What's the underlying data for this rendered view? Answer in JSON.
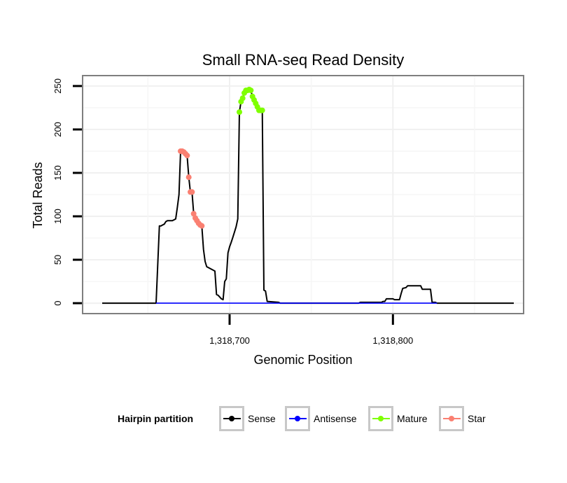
{
  "chart_data": {
    "type": "line",
    "title": "Small RNA-seq Read Density",
    "xlabel": "Genomic Position",
    "ylabel": "Total Reads",
    "xlim": [
      1318610,
      1318880
    ],
    "ylim": [
      -12,
      262
    ],
    "x_ticks": [
      {
        "value": 1318700,
        "label": "1,318,700"
      },
      {
        "value": 1318800,
        "label": "1,318,800"
      }
    ],
    "y_ticks": [
      {
        "value": 0,
        "label": "0"
      },
      {
        "value": 50,
        "label": "50"
      },
      {
        "value": 100,
        "label": "100"
      },
      {
        "value": 150,
        "label": "150"
      },
      {
        "value": 200,
        "label": "200"
      },
      {
        "value": 250,
        "label": "250"
      }
    ],
    "grid": true,
    "legend": {
      "title": "Hairpin partition",
      "position": "bottom",
      "entries": [
        {
          "name": "Sense",
          "color": "#000000"
        },
        {
          "name": "Antisense",
          "color": "#0000ff"
        },
        {
          "name": "Mature",
          "color": "#7fff00"
        },
        {
          "name": "Star",
          "color": "#fa8072"
        }
      ]
    },
    "series": [
      {
        "name": "Sense",
        "color": "#000000",
        "style": "line",
        "points": [
          [
            1318622,
            0
          ],
          [
            1318655,
            0
          ],
          [
            1318657,
            89
          ],
          [
            1318658,
            89
          ],
          [
            1318659,
            90
          ],
          [
            1318660,
            91
          ],
          [
            1318661,
            94
          ],
          [
            1318662,
            95
          ],
          [
            1318663,
            95
          ],
          [
            1318665,
            95
          ],
          [
            1318666,
            96
          ],
          [
            1318667,
            97
          ],
          [
            1318668,
            110
          ],
          [
            1318669,
            125
          ],
          [
            1318670,
            175
          ],
          [
            1318671,
            175
          ],
          [
            1318672,
            174
          ],
          [
            1318673,
            172
          ],
          [
            1318674,
            170
          ],
          [
            1318675,
            145
          ],
          [
            1318676,
            128
          ],
          [
            1318677,
            128
          ],
          [
            1318678,
            103
          ],
          [
            1318679,
            98
          ],
          [
            1318680,
            95
          ],
          [
            1318681,
            92
          ],
          [
            1318682,
            90
          ],
          [
            1318683,
            89
          ],
          [
            1318684,
            62
          ],
          [
            1318685,
            48
          ],
          [
            1318686,
            42
          ],
          [
            1318688,
            40
          ],
          [
            1318690,
            38
          ],
          [
            1318691,
            37
          ],
          [
            1318692,
            10
          ],
          [
            1318693,
            9
          ],
          [
            1318694,
            7
          ],
          [
            1318695,
            5
          ],
          [
            1318696,
            4
          ],
          [
            1318697,
            25
          ],
          [
            1318698,
            28
          ],
          [
            1318699,
            58
          ],
          [
            1318700,
            65
          ],
          [
            1318701,
            70
          ],
          [
            1318702,
            76
          ],
          [
            1318703,
            82
          ],
          [
            1318704,
            88
          ],
          [
            1318705,
            97
          ],
          [
            1318706,
            220
          ],
          [
            1318707,
            232
          ],
          [
            1318708,
            236
          ],
          [
            1318709,
            242
          ],
          [
            1318710,
            245
          ],
          [
            1318711,
            245
          ],
          [
            1318712,
            246
          ],
          [
            1318713,
            245
          ],
          [
            1318714,
            238
          ],
          [
            1318715,
            234
          ],
          [
            1318716,
            230
          ],
          [
            1318717,
            226
          ],
          [
            1318718,
            222
          ],
          [
            1318719,
            222
          ],
          [
            1318720,
            222
          ],
          [
            1318721,
            15
          ],
          [
            1318722,
            14
          ],
          [
            1318723,
            2
          ],
          [
            1318730,
            1
          ],
          [
            1318731,
            0
          ],
          [
            1318779,
            0
          ],
          [
            1318780,
            1
          ],
          [
            1318793,
            1
          ],
          [
            1318794,
            2
          ],
          [
            1318795,
            2
          ],
          [
            1318796,
            5
          ],
          [
            1318800,
            5
          ],
          [
            1318801,
            4
          ],
          [
            1318804,
            4
          ],
          [
            1318805,
            11
          ],
          [
            1318806,
            17
          ],
          [
            1318808,
            18
          ],
          [
            1318809,
            20
          ],
          [
            1318817,
            20
          ],
          [
            1318818,
            16
          ],
          [
            1318823,
            16
          ],
          [
            1318824,
            1
          ],
          [
            1318826,
            1
          ],
          [
            1318827,
            0
          ],
          [
            1318874,
            0
          ]
        ]
      },
      {
        "name": "Antisense",
        "color": "#0000ff",
        "style": "line",
        "points": [
          [
            1318655,
            0
          ],
          [
            1318827,
            0
          ]
        ]
      },
      {
        "name": "Mature",
        "color": "#7fff00",
        "style": "points",
        "points": [
          [
            1318706,
            220
          ],
          [
            1318707,
            232
          ],
          [
            1318708,
            236
          ],
          [
            1318709,
            242
          ],
          [
            1318710,
            245
          ],
          [
            1318711,
            245
          ],
          [
            1318712,
            246
          ],
          [
            1318713,
            245
          ],
          [
            1318714,
            238
          ],
          [
            1318715,
            234
          ],
          [
            1318716,
            230
          ],
          [
            1318717,
            226
          ],
          [
            1318718,
            222
          ],
          [
            1318719,
            222
          ],
          [
            1318720,
            222
          ]
        ]
      },
      {
        "name": "Star",
        "color": "#fa8072",
        "style": "points",
        "points": [
          [
            1318670,
            175
          ],
          [
            1318671,
            175
          ],
          [
            1318672,
            174
          ],
          [
            1318673,
            172
          ],
          [
            1318674,
            170
          ],
          [
            1318675,
            145
          ],
          [
            1318676,
            128
          ],
          [
            1318677,
            128
          ],
          [
            1318678,
            103
          ],
          [
            1318679,
            98
          ],
          [
            1318680,
            95
          ],
          [
            1318681,
            92
          ],
          [
            1318682,
            90
          ],
          [
            1318683,
            89
          ]
        ]
      }
    ]
  }
}
